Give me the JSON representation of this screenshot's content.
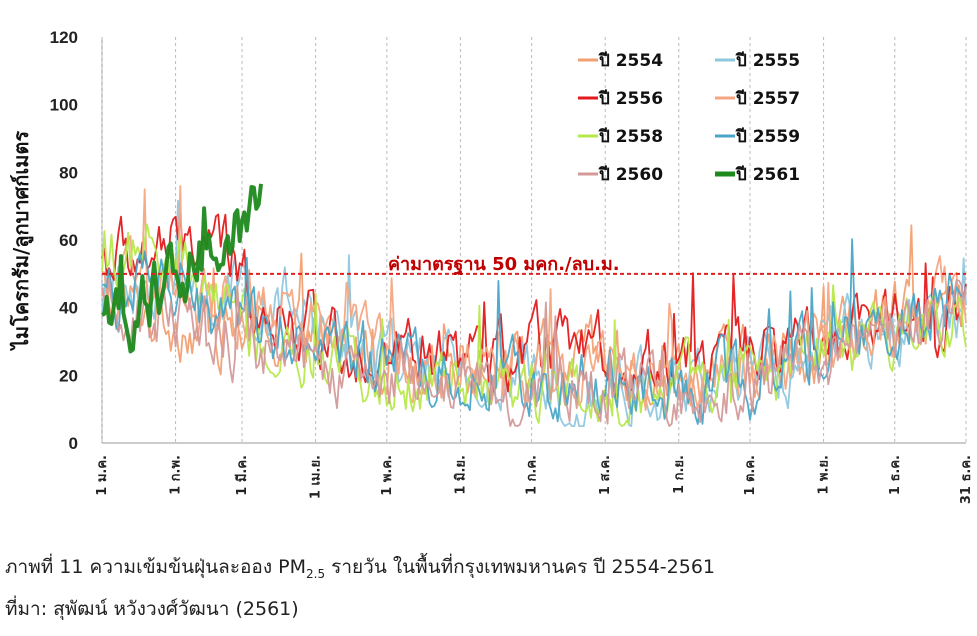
{
  "chart_data": {
    "type": "line",
    "title": "",
    "xlabel": "",
    "ylabel": "ไมโครกรัม/ลูกบาศก์เมตร",
    "ylim": [
      0,
      120
    ],
    "yticks": [
      0,
      20,
      40,
      60,
      80,
      100,
      120
    ],
    "x_ticks": [
      "1 ม.ค.",
      "1 ก.พ.",
      "1 มี.ค.",
      "1 เม.ย.",
      "1 พ.ค.",
      "1 มิ.ย.",
      "1 ก.ค.",
      "1 ส.ค.",
      "1 ก.ย.",
      "1 ต.ค.",
      "1 พ.ย.",
      "1 ธ.ค.",
      "31 ธ.ค."
    ],
    "x_tick_days": [
      1,
      32,
      60,
      91,
      121,
      152,
      182,
      213,
      244,
      274,
      305,
      335,
      365
    ],
    "grid": "vertical-dashed",
    "legend_position": "top-right",
    "standard_line": {
      "value": 50,
      "label": "ค่ามาตรฐาน 50 มคก./ลบ.ม.",
      "color": "#e02020"
    },
    "series": [
      {
        "name": "ปี 2554",
        "color": "#f2a072",
        "days": 365,
        "base": [
          40,
          34,
          32,
          27,
          26,
          24,
          24,
          22,
          22,
          24,
          36,
          38
        ]
      },
      {
        "name": "ปี 2555",
        "color": "#8fc7de",
        "days": 365,
        "base": [
          45,
          44,
          42,
          30,
          20,
          18,
          17,
          16,
          17,
          22,
          32,
          40
        ]
      },
      {
        "name": "ปี 2556",
        "color": "#e31a1c",
        "days": 365,
        "base": [
          55,
          60,
          38,
          30,
          25,
          24,
          28,
          23,
          26,
          26,
          32,
          40
        ]
      },
      {
        "name": "ปี 2557",
        "color": "#f4a582",
        "days": 365,
        "base": [
          45,
          42,
          38,
          35,
          24,
          22,
          20,
          20,
          20,
          24,
          35,
          42
        ]
      },
      {
        "name": "ปี 2558",
        "color": "#b6e84a",
        "days": 365,
        "base": [
          55,
          45,
          24,
          22,
          20,
          18,
          17,
          17,
          16,
          22,
          30,
          38
        ]
      },
      {
        "name": "ปี 2559",
        "color": "#4aa6c8",
        "days": 365,
        "base": [
          45,
          40,
          33,
          25,
          20,
          18,
          17,
          17,
          16,
          22,
          34,
          42
        ]
      },
      {
        "name": "ปี 2560",
        "color": "#d49a9a",
        "days": 365,
        "base": [
          38,
          34,
          26,
          22,
          18,
          18,
          17,
          16,
          16,
          20,
          30,
          36
        ]
      },
      {
        "name": "ปี 2561",
        "color": "#1e8a1e",
        "days": 68,
        "base": [
          40,
          58,
          70
        ]
      }
    ]
  },
  "caption": {
    "line1_before": "ภาพที่ 11 ความเข้มข้นฝุ่นละออง PM",
    "line1_sub": "2.5",
    "line1_after": " รายวัน ในพื้นที่กรุงเทพมหานคร ปี 2554-2561",
    "line2": "ที่มา: สุพัฒน์ หวังวงศ์วัฒนา (2561)"
  }
}
